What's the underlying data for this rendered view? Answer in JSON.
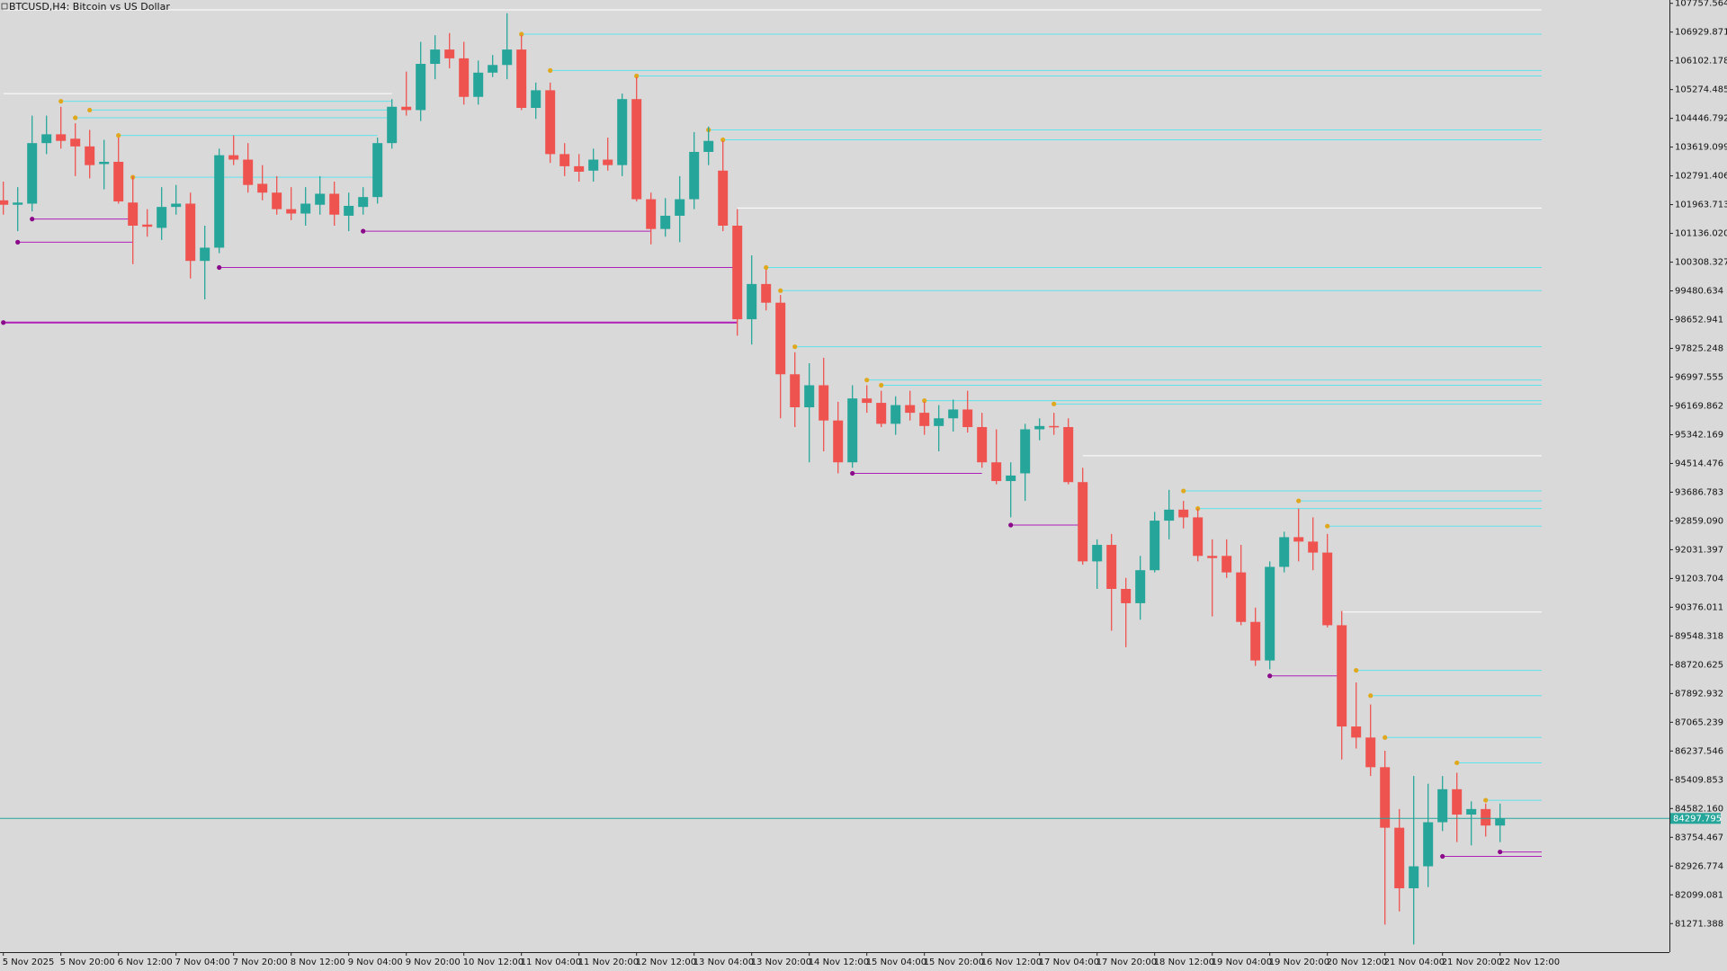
{
  "chart_data": {
    "type": "candlestick",
    "title": "BTCUSD,H4:  Bitcoin vs US Dollar",
    "up_color": "#26a69a",
    "down_color": "#ef5350",
    "categories": [
      "5 Nov 2025",
      null,
      null,
      null,
      "5 Nov 20:00",
      null,
      null,
      null,
      "6 Nov 12:00",
      null,
      null,
      null,
      "7 Nov 04:00",
      null,
      null,
      null,
      "7 Nov 20:00",
      null,
      null,
      null,
      "8 Nov 12:00",
      null,
      null,
      null,
      "9 Nov 04:00",
      null,
      null,
      null,
      "9 Nov 20:00",
      null,
      null,
      null,
      "10 Nov 12:00",
      null,
      null,
      null,
      "11 Nov 04:00",
      null,
      null,
      null,
      "11 Nov 20:00",
      null,
      null,
      null,
      "12 Nov 12:00",
      null,
      null,
      null,
      "13 Nov 04:00",
      null,
      null,
      null,
      "13 Nov 20:00",
      null,
      null,
      null,
      "14 Nov 12:00",
      null,
      null,
      null,
      "15 Nov 04:00",
      null,
      null,
      null,
      "15 Nov 20:00",
      null,
      null,
      null,
      "16 Nov 12:00",
      null,
      null,
      null,
      "17 Nov 04:00",
      null,
      null,
      null,
      "17 Nov 20:00",
      null,
      null,
      null,
      "18 Nov 12:00",
      null,
      null,
      null,
      "19 Nov 04:00",
      null,
      null,
      null,
      "19 Nov 20:00",
      null,
      null,
      null,
      "20 Nov 12:00",
      null,
      null,
      null,
      "21 Nov 04:00",
      null,
      null,
      null,
      "21 Nov 20:00",
      null,
      null,
      null,
      "22 Nov 12:00"
    ],
    "open": [
      102087,
      101960,
      101992,
      103734,
      103988,
      103861,
      103639,
      103132,
      103196,
      102024,
      101390,
      101295,
      101897,
      101992,
      100344,
      100725,
      103386,
      103259,
      102562,
      102309,
      101833,
      101707,
      101960,
      102277,
      101644,
      101897,
      102182,
      103734,
      104780,
      104685,
      106015,
      106427,
      106174,
      105065,
      105762,
      105983,
      106427,
      104748,
      105255,
      103418,
      103069,
      102942,
      103259,
      103101,
      105001,
      102119,
      101263,
      101644,
      102119,
      103481,
      102942,
      101358,
      98665,
      99679,
      99141,
      97081,
      96131,
      96765,
      95751,
      94547,
      96385,
      96258,
      95656,
      96194,
      95973,
      95592,
      95814,
      96068,
      95561,
      94547,
      94008,
      94230,
      95497,
      95592,
      95561,
      93977,
      91696,
      92171,
      90904,
      90492,
      91442,
      92868,
      93185,
      92963,
      91854,
      91854,
      91379,
      89954,
      88844,
      91538,
      92393,
      92266,
      91949,
      89858,
      86944,
      86626,
      85772,
      84030,
      82288,
      82920,
      84188,
      85138,
      84409,
      84568,
      84093
    ],
    "high": [
      102625,
      102467,
      104526,
      104526,
      104780,
      104304,
      104114,
      103829,
      103893,
      102784,
      101833,
      102467,
      102530,
      102309,
      101358,
      103576,
      103956,
      103734,
      103101,
      102784,
      102467,
      102467,
      102784,
      102625,
      102309,
      102467,
      103893,
      105001,
      105793,
      106649,
      106839,
      106902,
      106649,
      106110,
      106269,
      107472,
      106839,
      105477,
      105477,
      103734,
      103418,
      103576,
      103893,
      105160,
      105635,
      102309,
      102150,
      102784,
      104051,
      104209,
      103798,
      101833,
      100503,
      100091,
      99362,
      97715,
      97398,
      97557,
      96289,
      96765,
      96765,
      96606,
      96448,
      96606,
      96289,
      96194,
      96353,
      96606,
      95973,
      95497,
      94547,
      95656,
      95814,
      95973,
      95814,
      94389,
      92330,
      92487,
      91220,
      91854,
      93121,
      93755,
      93438,
      93216,
      92330,
      92330,
      92171,
      90366,
      91696,
      92551,
      93216,
      92963,
      92487,
      90270,
      88211,
      87578,
      86247,
      84568,
      85518,
      85297,
      85518,
      85613,
      84790,
      84726,
      84726
    ],
    "low": [
      101675,
      101200,
      101770,
      103418,
      103576,
      102784,
      102720,
      102404,
      101992,
      100250,
      101041,
      100946,
      101675,
      99838,
      99236,
      100566,
      103101,
      102309,
      102087,
      101675,
      101517,
      101358,
      101675,
      101358,
      101200,
      101675,
      101992,
      103576,
      104526,
      104368,
      105572,
      105888,
      104843,
      104843,
      105635,
      105572,
      104685,
      104431,
      103164,
      102784,
      102625,
      102625,
      102942,
      102784,
      102055,
      100820,
      101041,
      100883,
      101833,
      103101,
      101200,
      98190,
      97937,
      98919,
      95814,
      95561,
      94547,
      94864,
      94230,
      94389,
      95973,
      95561,
      95339,
      95751,
      95339,
      94864,
      95434,
      95403,
      94389,
      93913,
      92963,
      93438,
      95181,
      95339,
      93913,
      91601,
      90904,
      89700,
      89225,
      90017,
      91379,
      92330,
      92646,
      91696,
      90112,
      91220,
      89858,
      88686,
      88591,
      91379,
      91696,
      91442,
      89795,
      85993,
      86310,
      85518,
      81241,
      81622,
      80671,
      82320,
      83934,
      83617,
      83522,
      83776,
      83617
    ],
    "close": [
      101960,
      102023,
      103734,
      103988,
      103798,
      103639,
      103101,
      103196,
      102055,
      101358,
      101327,
      101897,
      101992,
      100344,
      100725,
      103386,
      103259,
      102530,
      102309,
      101833,
      101707,
      101992,
      102277,
      101675,
      101928,
      102182,
      103734,
      104780,
      104685,
      106015,
      106427,
      106174,
      105065,
      105762,
      105983,
      106427,
      104748,
      105255,
      103418,
      103069,
      102911,
      103259,
      103101,
      105001,
      102119,
      101263,
      101644,
      102119,
      103481,
      103798,
      101358,
      98665,
      99679,
      99141,
      97081,
      96131,
      96765,
      95751,
      94547,
      96385,
      96258,
      95656,
      96194,
      95973,
      95592,
      95814,
      96068,
      95561,
      94547,
      94008,
      94167,
      95497,
      95592,
      95561,
      93977,
      91696,
      92171,
      90904,
      90492,
      91442,
      92868,
      93185,
      92963,
      91854,
      91791,
      91379,
      89954,
      88844,
      91538,
      92393,
      92266,
      91949,
      89858,
      86944,
      86626,
      85772,
      84030,
      82288,
      82920,
      84188,
      85138,
      84409,
      84568,
      84093,
      84297.795
    ],
    "current_price_color": "#26a69a",
    "level_groups": [
      {
        "color": "#5ee3ea",
        "dot_color": "#e0a81c",
        "lines": [
          {
            "price": 106870,
            "from": 36
          },
          {
            "price": 105825,
            "from": 38
          },
          {
            "price": 105667,
            "from": 44
          },
          {
            "price": 104114,
            "from": 49
          },
          {
            "price": 103829,
            "from": 50
          },
          {
            "price": 100154,
            "from": 53
          },
          {
            "price": 99489,
            "from": 54
          },
          {
            "price": 97873,
            "from": 55
          },
          {
            "price": 96916,
            "from": 60
          },
          {
            "price": 96765,
            "from": 61
          },
          {
            "price": 96321,
            "from": 64
          },
          {
            "price": 96226,
            "from": 73
          },
          {
            "price": 93723,
            "from": 82
          },
          {
            "price": 93438,
            "from": 90
          },
          {
            "price": 93216,
            "from": 83
          },
          {
            "price": 92710,
            "from": 92
          },
          {
            "price": 88560,
            "from": 94
          },
          {
            "price": 87831,
            "from": 95
          },
          {
            "price": 86627,
            "from": 96
          },
          {
            "price": 85898,
            "from": 101
          },
          {
            "price": 84821,
            "from": 103
          },
          {
            "price": 104938,
            "from": 4,
            "to": 27
          },
          {
            "price": 104685,
            "from": 6,
            "to": 27
          },
          {
            "price": 104463,
            "from": 5,
            "to": 27
          },
          {
            "price": 103956,
            "from": 8,
            "to": 26
          },
          {
            "price": 102752,
            "from": 9,
            "to": 26
          }
        ]
      },
      {
        "color": "#b020b8",
        "dot_color": "#8a0a8a",
        "lines": [
          {
            "price": 98570,
            "from": 0,
            "to": 51
          },
          {
            "price": 100154,
            "from": 15,
            "to": 51
          },
          {
            "price": 101548,
            "from": 2,
            "to": 9
          },
          {
            "price": 100883,
            "from": 1,
            "to": 9
          },
          {
            "price": 101200,
            "from": 25,
            "to": 45
          },
          {
            "price": 94230,
            "from": 59,
            "to": 68
          },
          {
            "price": 92741,
            "from": 70,
            "to": 75
          },
          {
            "price": 88401,
            "from": 88,
            "to": 93
          },
          {
            "price": 83206,
            "from": 100
          },
          {
            "price": 83333,
            "from": 104
          }
        ]
      },
      {
        "color": "#ffffff",
        "lines": [
          {
            "price": 101865,
            "from": 51
          },
          {
            "price": 90239,
            "from": 93
          },
          {
            "price": 94737,
            "from": 75
          },
          {
            "price": 107567,
            "from": 0
          },
          {
            "price": 105160,
            "from": 0,
            "to": 27
          }
        ]
      }
    ],
    "ylim": [
      80450,
      107853
    ],
    "yticks": [
      107757.564,
      106929.871,
      106102.178,
      105274.485,
      104446.792,
      103619.099,
      102791.406,
      101963.713,
      {
        "value": 101136.02,
        "label": "101136.020"
      },
      100308.327,
      99480.634,
      98652.941,
      97825.248,
      96997.555,
      96169.862,
      95342.169,
      94514.476,
      93686.783,
      {
        "value": 92859.09,
        "label": "92859.090"
      },
      92031.397,
      91203.704,
      90376.011,
      89548.318,
      88720.625,
      87892.932,
      87065.239,
      86237.546,
      85409.853,
      {
        "value": 84582.16,
        "label": "84582.160"
      },
      83754.467,
      82926.774,
      82099.081,
      81271.388
    ]
  }
}
